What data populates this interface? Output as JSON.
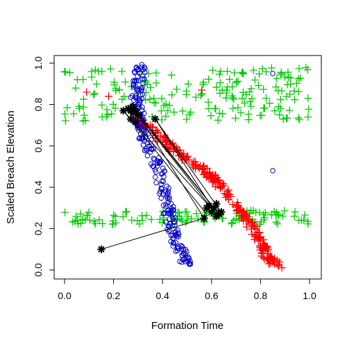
{
  "chart_data": {
    "type": "scatter",
    "title": "",
    "xlabel": "Formation Time",
    "ylabel": "Scaled Breach Elevation",
    "xlim": [
      -0.04,
      1.04
    ],
    "ylim": [
      -0.04,
      1.04
    ],
    "x_ticks": [
      "0.0",
      "0.2",
      "0.4",
      "0.6",
      "0.8",
      "1.0"
    ],
    "y_ticks": [
      "0.0",
      "0.2",
      "0.4",
      "0.6",
      "0.8",
      "1.0"
    ],
    "grid": false,
    "legend": "none",
    "series": [
      {
        "color": "#00cc00",
        "marker": "plus",
        "clusters": [
          {
            "x": [
              0.0,
              1.0
            ],
            "y": [
              0.72,
              0.98
            ],
            "count": 190
          },
          {
            "x": [
              0.0,
              1.0
            ],
            "y": [
              0.22,
              0.29
            ],
            "count": 120
          }
        ]
      },
      {
        "color": "#ff0000",
        "marker": "plus",
        "path": [
          [
            0.3,
            0.72
          ],
          [
            0.38,
            0.66
          ],
          [
            0.46,
            0.57
          ],
          [
            0.55,
            0.5
          ],
          [
            0.62,
            0.43
          ],
          [
            0.7,
            0.32
          ],
          [
            0.76,
            0.22
          ],
          [
            0.8,
            0.13
          ],
          [
            0.83,
            0.06
          ],
          [
            0.87,
            0.02
          ]
        ],
        "count": 260,
        "extras": [
          [
            0.09,
            0.86
          ],
          [
            0.18,
            0.84
          ],
          [
            0.56,
            0.87
          ],
          [
            0.26,
            0.78
          ],
          [
            0.31,
            0.71
          ],
          [
            0.38,
            0.62
          ]
        ]
      },
      {
        "color": "#0000cc",
        "marker": "circle",
        "path": [
          [
            0.31,
            0.99
          ],
          [
            0.3,
            0.9
          ],
          [
            0.29,
            0.8
          ],
          [
            0.31,
            0.7
          ],
          [
            0.34,
            0.6
          ],
          [
            0.38,
            0.5
          ],
          [
            0.4,
            0.4
          ],
          [
            0.42,
            0.3
          ],
          [
            0.44,
            0.2
          ],
          [
            0.47,
            0.1
          ],
          [
            0.5,
            0.03
          ]
        ],
        "count": 240,
        "extras": [
          [
            0.85,
            0.48
          ],
          [
            0.85,
            0.95
          ]
        ]
      }
    ],
    "black_points": [
      [
        0.24,
        0.77
      ],
      [
        0.26,
        0.78
      ],
      [
        0.27,
        0.77
      ],
      [
        0.28,
        0.76
      ],
      [
        0.28,
        0.79
      ],
      [
        0.29,
        0.77
      ],
      [
        0.3,
        0.75
      ],
      [
        0.27,
        0.73
      ],
      [
        0.29,
        0.72
      ],
      [
        0.37,
        0.73
      ],
      [
        0.57,
        0.25
      ],
      [
        0.58,
        0.3
      ],
      [
        0.59,
        0.31
      ],
      [
        0.6,
        0.28
      ],
      [
        0.61,
        0.3
      ],
      [
        0.62,
        0.32
      ],
      [
        0.63,
        0.27
      ],
      [
        0.64,
        0.28
      ],
      [
        0.62,
        0.26
      ],
      [
        0.15,
        0.1
      ]
    ],
    "black_path": [
      [
        0.15,
        0.1
      ],
      [
        0.57,
        0.25
      ],
      [
        0.28,
        0.79
      ],
      [
        0.61,
        0.3
      ],
      [
        0.3,
        0.75
      ],
      [
        0.62,
        0.27
      ],
      [
        0.37,
        0.73
      ],
      [
        0.64,
        0.28
      ],
      [
        0.59,
        0.31
      ],
      [
        0.24,
        0.77
      ],
      [
        0.58,
        0.27
      ]
    ]
  }
}
